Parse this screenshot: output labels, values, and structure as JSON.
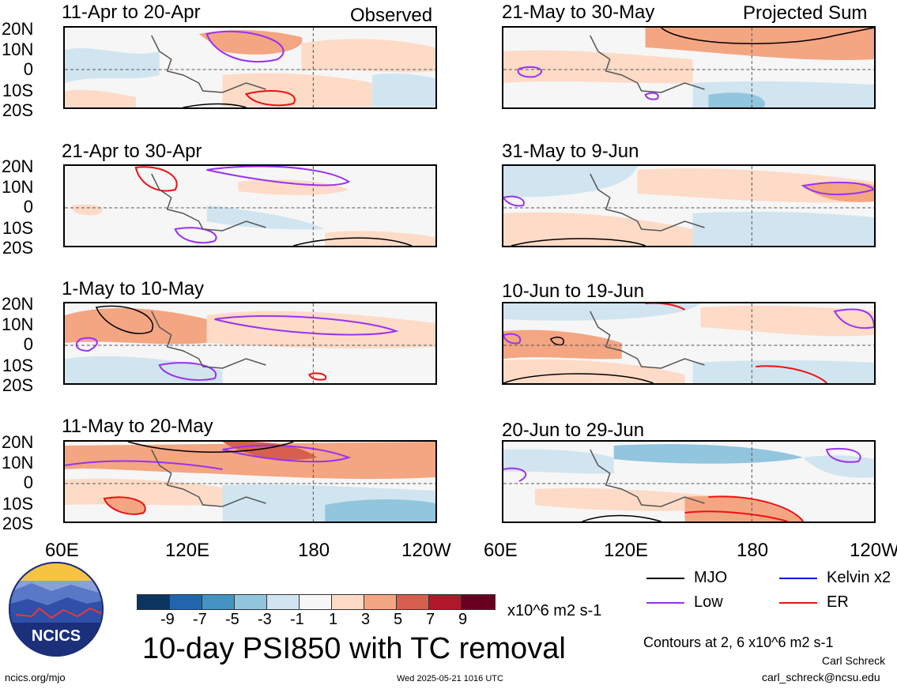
{
  "columns": {
    "left": "Observed",
    "right": "Projected Sum"
  },
  "panels": {
    "left": [
      "11-Apr to 20-Apr",
      "21-Apr to 30-Apr",
      "1-May to 10-May",
      "11-May to 20-May"
    ],
    "right": [
      "21-May to 30-May",
      "31-May to 9-Jun",
      "10-Jun to 19-Jun",
      "20-Jun to 29-Jun"
    ]
  },
  "lat_labels": [
    "20N",
    "10N",
    "0",
    "10S",
    "20S"
  ],
  "lon_labels": [
    "60E",
    "120E",
    "180",
    "120W"
  ],
  "legend": {
    "items": [
      {
        "label": "MJO",
        "color": "#000000"
      },
      {
        "label": "Kelvin x2",
        "color": "#0000ee"
      },
      {
        "label": "Low",
        "color": "#9a32f0"
      },
      {
        "label": "ER",
        "color": "#ee1111"
      }
    ],
    "contours_note": "Contours at 2, 6 x10^6 m2 s-1"
  },
  "colorbar": {
    "ticks": [
      "-9",
      "-7",
      "-5",
      "-3",
      "-1",
      "1",
      "3",
      "5",
      "7",
      "9"
    ],
    "unit": "x10^6 m2 s-1",
    "colors": [
      "#0b3460",
      "#2166ac",
      "#4393c3",
      "#92c5de",
      "#d1e5f0",
      "#f7f7f7",
      "#fddbc7",
      "#f4a582",
      "#d6604d",
      "#b2182b",
      "#67001f"
    ]
  },
  "main_title": "10-day PSI850 with TC removal",
  "logo_text": "NCICS",
  "footer": {
    "website": "ncics.org/mjo",
    "timestamp": "Wed 2025-05-21 1016 UTC",
    "author": "Carl Schreck",
    "email": "carl_schreck@ncsu.edu"
  }
}
